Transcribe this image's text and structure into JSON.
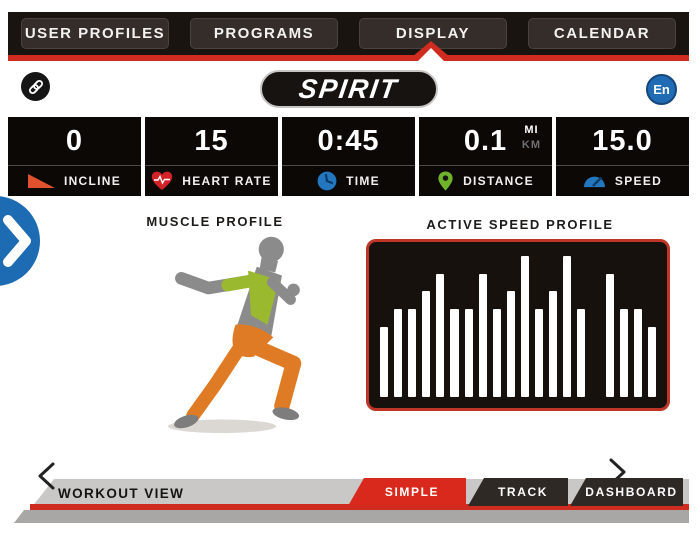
{
  "nav": {
    "items": [
      {
        "label": "USER PROFILES",
        "active": false
      },
      {
        "label": "PROGRAMS",
        "active": false
      },
      {
        "label": "DISPLAY",
        "active": true
      },
      {
        "label": "CALENDAR",
        "active": false
      }
    ]
  },
  "header": {
    "brand": "SPIRIT",
    "language_badge": "En"
  },
  "metrics": [
    {
      "value": "0",
      "label": "INCLINE",
      "icon": "incline-icon"
    },
    {
      "value": "15",
      "label": "HEART RATE",
      "icon": "heart-icon"
    },
    {
      "value": "0:45",
      "label": "TIME",
      "icon": "clock-icon"
    },
    {
      "value": "0.1",
      "label": "DISTANCE",
      "icon": "location-pin-icon",
      "unit_primary": "MI",
      "unit_secondary": "KM",
      "unit_selected": "MI"
    },
    {
      "value": "15.0",
      "label": "SPEED",
      "icon": "speedometer-icon"
    }
  ],
  "sections": {
    "muscle_profile_title": "MUSCLE PROFILE",
    "speed_profile_title": "ACTIVE SPEED PROFILE"
  },
  "chart_data": {
    "type": "bar",
    "title": "ACTIVE SPEED PROFILE",
    "values": [
      4,
      5,
      5,
      6,
      7,
      5,
      5,
      7,
      5,
      6,
      8,
      5,
      6,
      8,
      5,
      0,
      7,
      5,
      5,
      4
    ],
    "ylim": [
      0,
      8
    ],
    "xlabel": "",
    "ylabel": "",
    "grid": false,
    "bar_color": "#ffffff",
    "background": "#17110e",
    "border_color": "#bf3527"
  },
  "footer": {
    "workout_view_label": "WORKOUT VIEW",
    "tabs": [
      {
        "label": "SIMPLE",
        "active": true
      },
      {
        "label": "TRACK",
        "active": false
      },
      {
        "label": "DASHBOARD",
        "active": false
      }
    ]
  },
  "colors": {
    "accent_red": "#cf2b1f",
    "nav_black": "#1a1411",
    "tile_black": "#0b0806",
    "blue": "#1f6cb4",
    "green_pin": "#6fb32a",
    "muscle_green": "#9ab92f",
    "muscle_orange": "#e07b25",
    "heart_red": "#d22127",
    "incline_orange": "#e0512e"
  }
}
